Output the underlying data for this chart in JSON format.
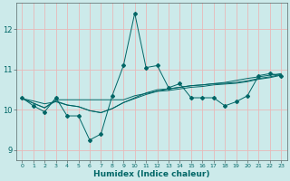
{
  "xlabel": "Humidex (Indice chaleur)",
  "background_color": "#cceaea",
  "grid_color": "#e8b8b8",
  "line_color": "#006666",
  "xlim": [
    -0.5,
    23.5
  ],
  "ylim": [
    8.75,
    12.65
  ],
  "yticks": [
    9,
    10,
    11,
    12
  ],
  "xticks": [
    0,
    1,
    2,
    3,
    4,
    5,
    6,
    7,
    8,
    9,
    10,
    11,
    12,
    13,
    14,
    15,
    16,
    17,
    18,
    19,
    20,
    21,
    22,
    23
  ],
  "series1": {
    "x": [
      0,
      1,
      2,
      3,
      4,
      5,
      6,
      7,
      8,
      9,
      10,
      11,
      12,
      13,
      14,
      15,
      16,
      17,
      18,
      19,
      20,
      21,
      22,
      23
    ],
    "y": [
      10.3,
      10.1,
      9.95,
      10.3,
      9.85,
      9.85,
      9.25,
      9.4,
      10.35,
      11.1,
      12.4,
      11.05,
      11.1,
      10.55,
      10.65,
      10.3,
      10.3,
      10.3,
      10.1,
      10.2,
      10.35,
      10.85,
      10.9,
      10.85
    ]
  },
  "series2": {
    "x": [
      0,
      1,
      2,
      3,
      4,
      5,
      6,
      7,
      8,
      9,
      10,
      11,
      12,
      13,
      14,
      15,
      16,
      17,
      18,
      19,
      20,
      21,
      22,
      23
    ],
    "y": [
      10.28,
      10.22,
      10.15,
      10.2,
      10.12,
      10.08,
      9.98,
      9.93,
      10.03,
      10.18,
      10.28,
      10.38,
      10.46,
      10.48,
      10.52,
      10.56,
      10.58,
      10.62,
      10.64,
      10.66,
      10.7,
      10.76,
      10.8,
      10.86
    ]
  },
  "series3": {
    "x": [
      0,
      2,
      3,
      4,
      5,
      6,
      7,
      8,
      9,
      10,
      11,
      12,
      13,
      14,
      15,
      16,
      17,
      18,
      19,
      20,
      21,
      22,
      23
    ],
    "y": [
      10.28,
      10.05,
      10.22,
      10.12,
      10.08,
      9.98,
      9.93,
      10.03,
      10.18,
      10.3,
      10.42,
      10.5,
      10.52,
      10.56,
      10.6,
      10.62,
      10.65,
      10.66,
      10.68,
      10.72,
      10.78,
      10.82,
      10.88
    ]
  },
  "series4": {
    "x": [
      0,
      2,
      3,
      9,
      10,
      13,
      14,
      15,
      16,
      17,
      18,
      20,
      21,
      22,
      23
    ],
    "y": [
      10.28,
      10.05,
      10.25,
      10.25,
      10.35,
      10.52,
      10.56,
      10.6,
      10.62,
      10.65,
      10.68,
      10.78,
      10.82,
      10.86,
      10.9
    ]
  }
}
